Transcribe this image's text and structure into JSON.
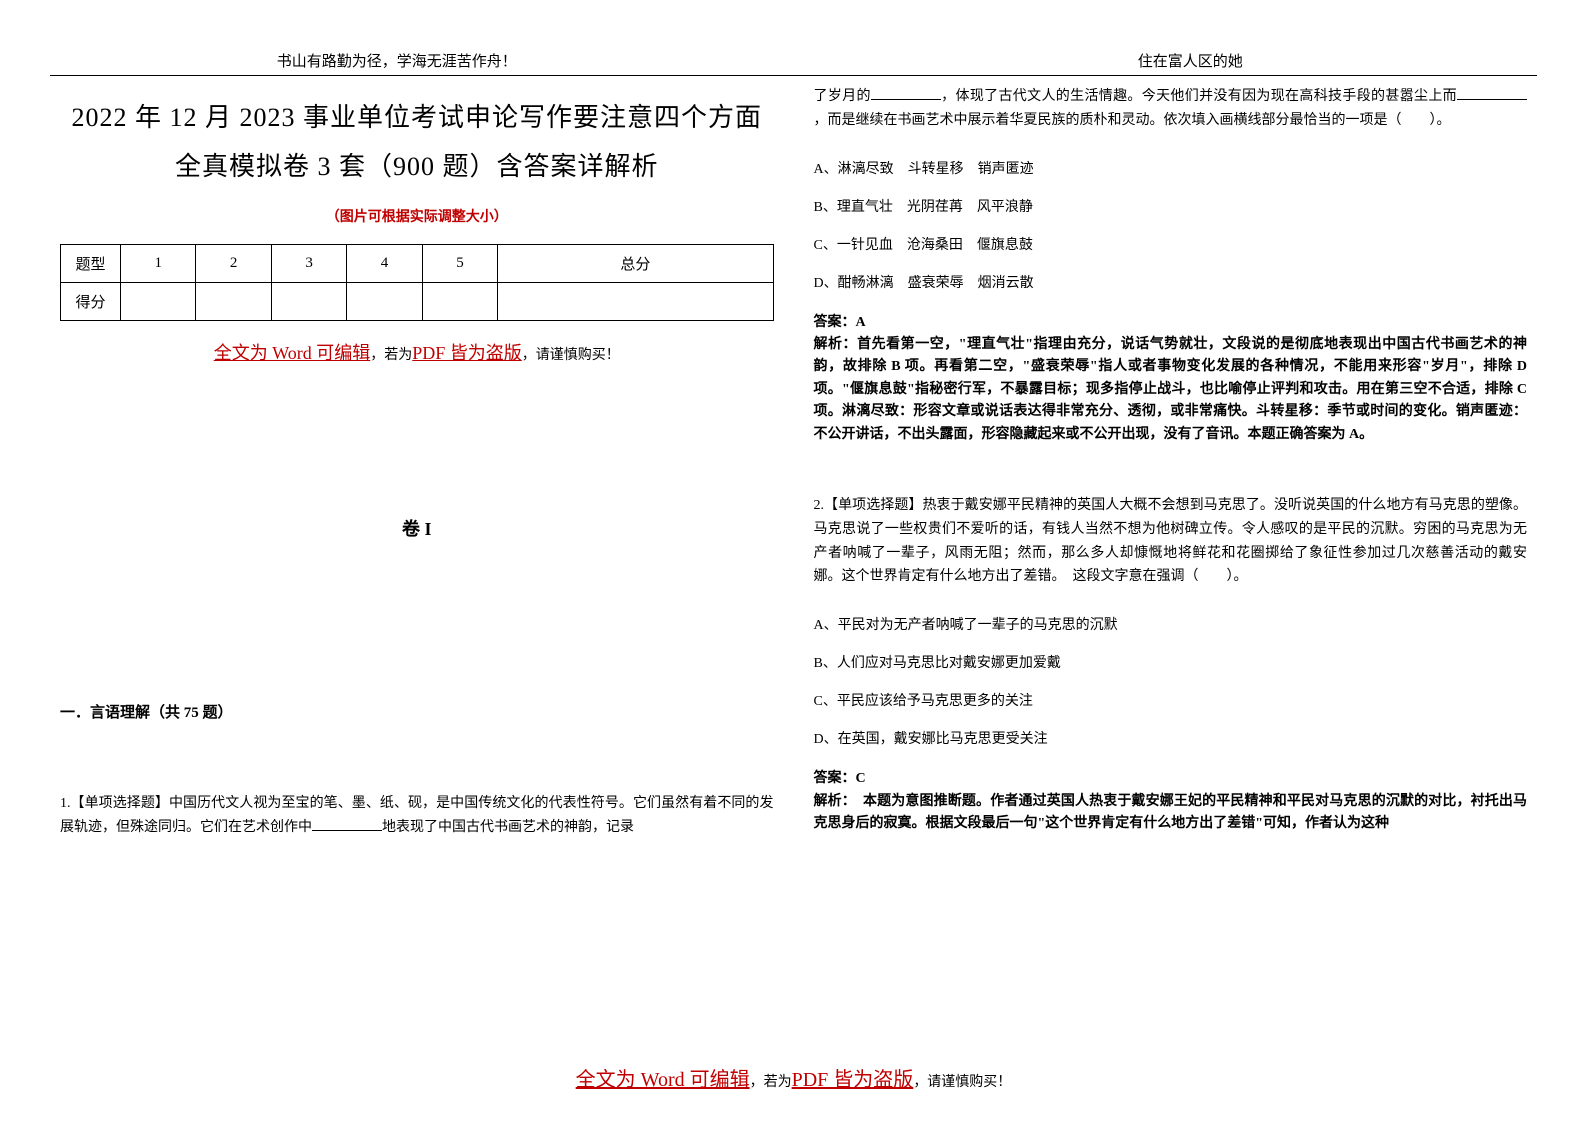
{
  "header": {
    "left": "书山有路勤为径，学海无涯苦作舟！",
    "right": "住在富人区的她"
  },
  "document": {
    "title": "2022 年 12 月 2023 事业单位考试申论写作要注意四个方面全真模拟卷 3 套（900 题）含答案详解析",
    "subtitle": "（图片可根据实际调整大小）"
  },
  "score_table": {
    "row_labels": [
      "题型",
      "得分"
    ],
    "columns": [
      "1",
      "2",
      "3",
      "4",
      "5",
      "总分"
    ]
  },
  "warning": {
    "part1": "全文为 Word 可编辑",
    "part2": "，若为",
    "part3": "PDF 皆为盗版",
    "part4": "，请谨慎购买！"
  },
  "volume_title": "卷 I",
  "section_title": "一．言语理解（共 75 题）",
  "q1": {
    "stem_part1": "1.【单项选择题】中国历代文人视为至宝的笔、墨、纸、砚，是中国传统文化的代表性符号。它们虽然有着不同的发展轨迹，但殊途同归。它们在艺术创作中",
    "stem_part2": "地表现了中国古代书画艺术的神韵，记录",
    "cont_part1": "了岁月的",
    "cont_part2": "，体现了古代文人的生活情趣。今天他们并没有因为现在高科技手段的甚嚣尘上而",
    "cont_part3": "，而是继续在书画艺术中展示着华夏民族的质朴和灵动。依次填入画横线部分最恰当的一项是（　　）。",
    "options": {
      "a": "A、淋漓尽致　斗转星移　销声匿迹",
      "b": "B、理直气壮　光阴荏苒　风平浪静",
      "c": "C、一针见血　沧海桑田　偃旗息鼓",
      "d": "D、酣畅淋漓　盛衰荣辱　烟消云散"
    },
    "answer_label": "答案：A",
    "analysis": "解析：首先看第一空，\"理直气壮\"指理由充分，说话气势就壮，文段说的是彻底地表现出中国古代书画艺术的神韵，故排除 B 项。再看第二空，\"盛衰荣辱\"指人或者事物变化发展的各种情况，不能用来形容\"岁月\"，排除 D 项。\"偃旗息鼓\"指秘密行军，不暴露目标；现多指停止战斗，也比喻停止评判和攻击。用在第三空不合适，排除 C 项。淋漓尽致：形容文章或说话表达得非常充分、透彻，或非常痛快。斗转星移：季节或时间的变化。销声匿迹：不公开讲话，不出头露面，形容隐藏起来或不公开出现，没有了音讯。本题正确答案为 A。"
  },
  "q2": {
    "stem": "2.【单项选择题】热衷于戴安娜平民精神的英国人大概不会想到马克思了。没听说英国的什么地方有马克思的塑像。马克思说了一些权贵们不爱听的话，有钱人当然不想为他树碑立传。令人感叹的是平民的沉默。穷困的马克思为无产者呐喊了一辈子，风雨无阻；然而，那么多人却慷慨地将鲜花和花圈掷给了象征性参加过几次慈善活动的戴安娜。这个世界肯定有什么地方出了差错。　这段文字意在强调（　　）。",
    "options": {
      "a": "A、平民对为无产者呐喊了一辈子的马克思的沉默",
      "b": "B、人们应对马克思比对戴安娜更加爱戴",
      "c": "C、平民应该给予马克思更多的关注",
      "d": "D、在英国，戴安娜比马克思更受关注"
    },
    "answer_label": "答案：C",
    "analysis": "解析：　本题为意图推断题。作者通过英国人热衷于戴安娜王妃的平民精神和平民对马克思的沉默的对比，衬托出马克思身后的寂寞。根据文段最后一句\"这个世界肯定有什么地方出了差错\"可知，作者认为这种"
  },
  "colors": {
    "text": "#000000",
    "red": "#c00000",
    "background": "#ffffff",
    "border": "#000000"
  },
  "typography": {
    "title_fontsize": 26,
    "body_fontsize": 14,
    "header_fontsize": 15,
    "section_fontsize": 15,
    "volume_fontsize": 18
  }
}
